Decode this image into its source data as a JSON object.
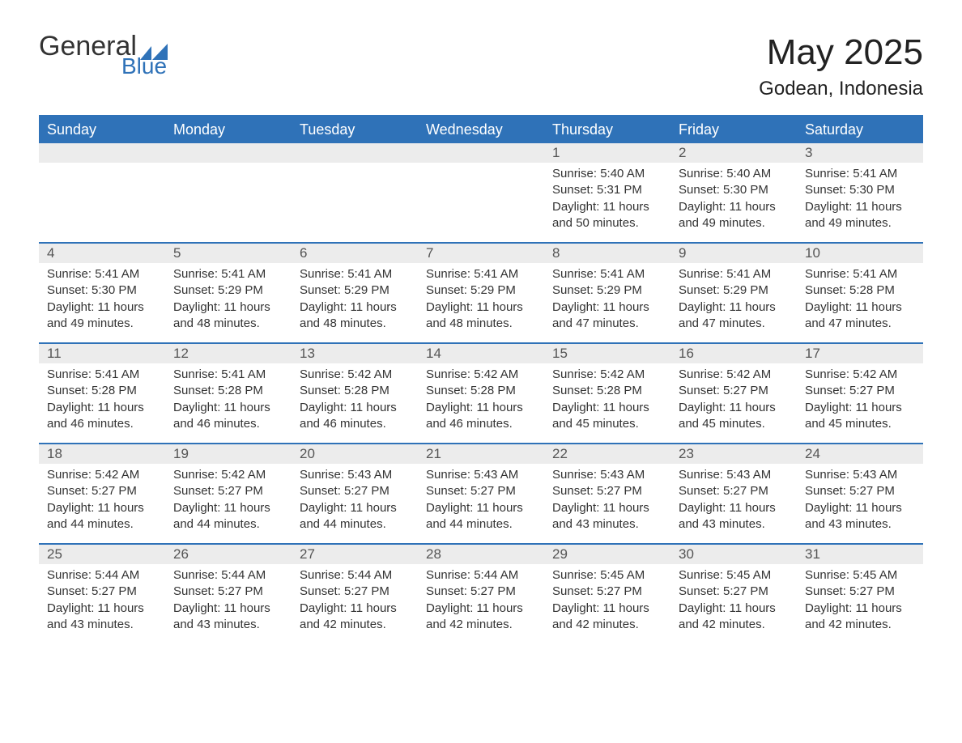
{
  "brand": {
    "word1": "General",
    "word2": "Blue",
    "accent_color": "#2f72b8"
  },
  "title": {
    "month": "May 2025",
    "location": "Godean, Indonesia"
  },
  "colors": {
    "header_bg": "#2f72b8",
    "header_text": "#ffffff",
    "daynum_bg": "#ececec",
    "text": "#333333",
    "divider": "#2f72b8"
  },
  "daysOfWeek": [
    "Sunday",
    "Monday",
    "Tuesday",
    "Wednesday",
    "Thursday",
    "Friday",
    "Saturday"
  ],
  "weeks": [
    [
      null,
      null,
      null,
      null,
      {
        "n": "1",
        "sunrise": "Sunrise: 5:40 AM",
        "sunset": "Sunset: 5:31 PM",
        "daylight1": "Daylight: 11 hours",
        "daylight2": "and 50 minutes."
      },
      {
        "n": "2",
        "sunrise": "Sunrise: 5:40 AM",
        "sunset": "Sunset: 5:30 PM",
        "daylight1": "Daylight: 11 hours",
        "daylight2": "and 49 minutes."
      },
      {
        "n": "3",
        "sunrise": "Sunrise: 5:41 AM",
        "sunset": "Sunset: 5:30 PM",
        "daylight1": "Daylight: 11 hours",
        "daylight2": "and 49 minutes."
      }
    ],
    [
      {
        "n": "4",
        "sunrise": "Sunrise: 5:41 AM",
        "sunset": "Sunset: 5:30 PM",
        "daylight1": "Daylight: 11 hours",
        "daylight2": "and 49 minutes."
      },
      {
        "n": "5",
        "sunrise": "Sunrise: 5:41 AM",
        "sunset": "Sunset: 5:29 PM",
        "daylight1": "Daylight: 11 hours",
        "daylight2": "and 48 minutes."
      },
      {
        "n": "6",
        "sunrise": "Sunrise: 5:41 AM",
        "sunset": "Sunset: 5:29 PM",
        "daylight1": "Daylight: 11 hours",
        "daylight2": "and 48 minutes."
      },
      {
        "n": "7",
        "sunrise": "Sunrise: 5:41 AM",
        "sunset": "Sunset: 5:29 PM",
        "daylight1": "Daylight: 11 hours",
        "daylight2": "and 48 minutes."
      },
      {
        "n": "8",
        "sunrise": "Sunrise: 5:41 AM",
        "sunset": "Sunset: 5:29 PM",
        "daylight1": "Daylight: 11 hours",
        "daylight2": "and 47 minutes."
      },
      {
        "n": "9",
        "sunrise": "Sunrise: 5:41 AM",
        "sunset": "Sunset: 5:29 PM",
        "daylight1": "Daylight: 11 hours",
        "daylight2": "and 47 minutes."
      },
      {
        "n": "10",
        "sunrise": "Sunrise: 5:41 AM",
        "sunset": "Sunset: 5:28 PM",
        "daylight1": "Daylight: 11 hours",
        "daylight2": "and 47 minutes."
      }
    ],
    [
      {
        "n": "11",
        "sunrise": "Sunrise: 5:41 AM",
        "sunset": "Sunset: 5:28 PM",
        "daylight1": "Daylight: 11 hours",
        "daylight2": "and 46 minutes."
      },
      {
        "n": "12",
        "sunrise": "Sunrise: 5:41 AM",
        "sunset": "Sunset: 5:28 PM",
        "daylight1": "Daylight: 11 hours",
        "daylight2": "and 46 minutes."
      },
      {
        "n": "13",
        "sunrise": "Sunrise: 5:42 AM",
        "sunset": "Sunset: 5:28 PM",
        "daylight1": "Daylight: 11 hours",
        "daylight2": "and 46 minutes."
      },
      {
        "n": "14",
        "sunrise": "Sunrise: 5:42 AM",
        "sunset": "Sunset: 5:28 PM",
        "daylight1": "Daylight: 11 hours",
        "daylight2": "and 46 minutes."
      },
      {
        "n": "15",
        "sunrise": "Sunrise: 5:42 AM",
        "sunset": "Sunset: 5:28 PM",
        "daylight1": "Daylight: 11 hours",
        "daylight2": "and 45 minutes."
      },
      {
        "n": "16",
        "sunrise": "Sunrise: 5:42 AM",
        "sunset": "Sunset: 5:27 PM",
        "daylight1": "Daylight: 11 hours",
        "daylight2": "and 45 minutes."
      },
      {
        "n": "17",
        "sunrise": "Sunrise: 5:42 AM",
        "sunset": "Sunset: 5:27 PM",
        "daylight1": "Daylight: 11 hours",
        "daylight2": "and 45 minutes."
      }
    ],
    [
      {
        "n": "18",
        "sunrise": "Sunrise: 5:42 AM",
        "sunset": "Sunset: 5:27 PM",
        "daylight1": "Daylight: 11 hours",
        "daylight2": "and 44 minutes."
      },
      {
        "n": "19",
        "sunrise": "Sunrise: 5:42 AM",
        "sunset": "Sunset: 5:27 PM",
        "daylight1": "Daylight: 11 hours",
        "daylight2": "and 44 minutes."
      },
      {
        "n": "20",
        "sunrise": "Sunrise: 5:43 AM",
        "sunset": "Sunset: 5:27 PM",
        "daylight1": "Daylight: 11 hours",
        "daylight2": "and 44 minutes."
      },
      {
        "n": "21",
        "sunrise": "Sunrise: 5:43 AM",
        "sunset": "Sunset: 5:27 PM",
        "daylight1": "Daylight: 11 hours",
        "daylight2": "and 44 minutes."
      },
      {
        "n": "22",
        "sunrise": "Sunrise: 5:43 AM",
        "sunset": "Sunset: 5:27 PM",
        "daylight1": "Daylight: 11 hours",
        "daylight2": "and 43 minutes."
      },
      {
        "n": "23",
        "sunrise": "Sunrise: 5:43 AM",
        "sunset": "Sunset: 5:27 PM",
        "daylight1": "Daylight: 11 hours",
        "daylight2": "and 43 minutes."
      },
      {
        "n": "24",
        "sunrise": "Sunrise: 5:43 AM",
        "sunset": "Sunset: 5:27 PM",
        "daylight1": "Daylight: 11 hours",
        "daylight2": "and 43 minutes."
      }
    ],
    [
      {
        "n": "25",
        "sunrise": "Sunrise: 5:44 AM",
        "sunset": "Sunset: 5:27 PM",
        "daylight1": "Daylight: 11 hours",
        "daylight2": "and 43 minutes."
      },
      {
        "n": "26",
        "sunrise": "Sunrise: 5:44 AM",
        "sunset": "Sunset: 5:27 PM",
        "daylight1": "Daylight: 11 hours",
        "daylight2": "and 43 minutes."
      },
      {
        "n": "27",
        "sunrise": "Sunrise: 5:44 AM",
        "sunset": "Sunset: 5:27 PM",
        "daylight1": "Daylight: 11 hours",
        "daylight2": "and 42 minutes."
      },
      {
        "n": "28",
        "sunrise": "Sunrise: 5:44 AM",
        "sunset": "Sunset: 5:27 PM",
        "daylight1": "Daylight: 11 hours",
        "daylight2": "and 42 minutes."
      },
      {
        "n": "29",
        "sunrise": "Sunrise: 5:45 AM",
        "sunset": "Sunset: 5:27 PM",
        "daylight1": "Daylight: 11 hours",
        "daylight2": "and 42 minutes."
      },
      {
        "n": "30",
        "sunrise": "Sunrise: 5:45 AM",
        "sunset": "Sunset: 5:27 PM",
        "daylight1": "Daylight: 11 hours",
        "daylight2": "and 42 minutes."
      },
      {
        "n": "31",
        "sunrise": "Sunrise: 5:45 AM",
        "sunset": "Sunset: 5:27 PM",
        "daylight1": "Daylight: 11 hours",
        "daylight2": "and 42 minutes."
      }
    ]
  ]
}
